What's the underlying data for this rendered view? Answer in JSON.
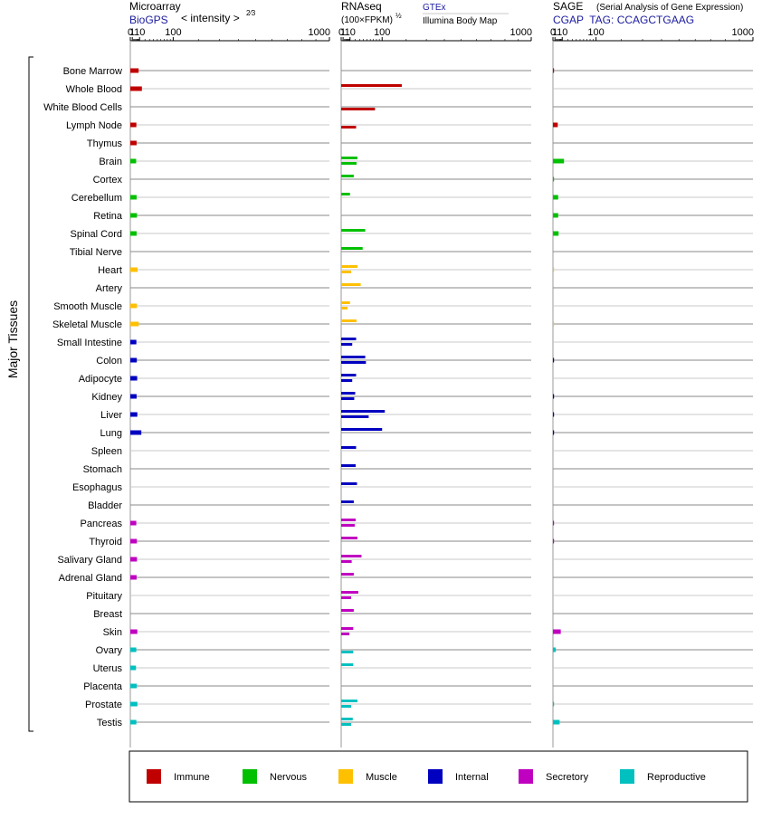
{
  "chart_data": [
    {
      "type": "bar",
      "panel": "microarray",
      "title": "Microarray",
      "source": "BioGPS",
      "scale_label": "< intensity >",
      "scale_exponent": "2⁄3",
      "axis_ticks": [
        "0",
        "1",
        "10",
        "100",
        "1000"
      ],
      "xlim": [
        0,
        1000
      ],
      "series": [
        {
          "name": "BioGPS",
          "values": [
            8.5,
            14,
            0,
            5.3,
            5.6,
            5,
            0,
            5.6,
            6.1,
            5.6,
            0,
            6.9,
            0,
            6.1,
            8.7,
            5.3,
            5.9,
            6.4,
            5.6,
            6.6,
            13,
            0,
            0,
            0,
            0,
            5.2,
            6.0,
            6.1,
            5.6,
            0,
            0,
            6.6,
            5.2,
            4.8,
            5.9,
            6.7,
            5.3
          ]
        }
      ]
    },
    {
      "type": "bar",
      "panel": "rnaseq",
      "title": "RNAseq",
      "unit_label": "(100×FPKM)",
      "unit_exponent": "½",
      "axis_ticks": [
        "0",
        "1",
        "10",
        "100",
        "1000"
      ],
      "xlim": [
        0,
        1000
      ],
      "series": [
        {
          "name": "GTEx",
          "values": [
            0,
            180,
            0,
            0,
            0,
            25,
            17,
            10,
            0,
            45,
            38,
            25,
            33,
            10,
            23,
            22,
            45,
            22,
            20,
            110,
            100,
            22,
            21,
            24,
            17,
            21,
            25,
            35,
            17,
            27,
            17,
            16,
            0,
            16,
            0,
            25,
            15
          ]
        },
        {
          "name": "Illumina Body Map",
          "values": [
            0,
            0,
            75,
            22,
            0,
            23,
            0,
            0,
            0,
            0,
            0,
            12,
            0,
            6,
            0,
            14,
            47,
            14,
            18,
            55,
            0,
            0,
            0,
            0,
            0,
            19,
            0,
            13,
            0,
            12,
            0,
            9,
            16,
            0,
            0,
            12,
            12
          ]
        }
      ]
    },
    {
      "type": "bar",
      "panel": "sage",
      "title": "SAGE",
      "subtitle": "(Serial Analysis of Gene Expression)",
      "tag_label": "CGAP  TAG: CCAGCTGAAG",
      "axis_ticks": [
        "0",
        "1",
        "10",
        "100",
        "1000"
      ],
      "xlim": [
        0,
        1000
      ],
      "series": [
        {
          "name": "CGAP",
          "values": [
            0.15,
            0,
            0,
            3.7,
            0,
            13,
            0.05,
            4.2,
            4.2,
            4.7,
            0,
            0.05,
            0,
            0,
            0.05,
            0,
            0.12,
            0,
            0.12,
            0.12,
            0.12,
            0,
            0,
            0,
            0,
            0.12,
            0.12,
            0,
            0,
            0,
            0,
            7.7,
            1.7,
            0,
            0,
            0.08,
            6.1
          ]
        }
      ]
    }
  ],
  "tissues": [
    {
      "name": "Bone Marrow",
      "group": 0
    },
    {
      "name": "Whole Blood",
      "group": 0
    },
    {
      "name": "White Blood Cells",
      "group": 0
    },
    {
      "name": "Lymph Node",
      "group": 0
    },
    {
      "name": "Thymus",
      "group": 0
    },
    {
      "name": "Brain",
      "group": 1
    },
    {
      "name": "Cortex",
      "group": 1
    },
    {
      "name": "Cerebellum",
      "group": 1
    },
    {
      "name": "Retina",
      "group": 1
    },
    {
      "name": "Spinal Cord",
      "group": 1
    },
    {
      "name": "Tibial Nerve",
      "group": 1
    },
    {
      "name": "Heart",
      "group": 2
    },
    {
      "name": "Artery",
      "group": 2
    },
    {
      "name": "Smooth Muscle",
      "group": 2
    },
    {
      "name": "Skeletal Muscle",
      "group": 2
    },
    {
      "name": "Small Intestine",
      "group": 3
    },
    {
      "name": "Colon",
      "group": 3
    },
    {
      "name": "Adipocyte",
      "group": 3
    },
    {
      "name": "Kidney",
      "group": 3
    },
    {
      "name": "Liver",
      "group": 3
    },
    {
      "name": "Lung",
      "group": 3
    },
    {
      "name": "Spleen",
      "group": 3
    },
    {
      "name": "Stomach",
      "group": 3
    },
    {
      "name": "Esophagus",
      "group": 3
    },
    {
      "name": "Bladder",
      "group": 3
    },
    {
      "name": "Pancreas",
      "group": 4
    },
    {
      "name": "Thyroid",
      "group": 4
    },
    {
      "name": "Salivary Gland",
      "group": 4
    },
    {
      "name": "Adrenal Gland",
      "group": 4
    },
    {
      "name": "Pituitary",
      "group": 4
    },
    {
      "name": "Breast",
      "group": 4
    },
    {
      "name": "Skin",
      "group": 4
    },
    {
      "name": "Ovary",
      "group": 5
    },
    {
      "name": "Uterus",
      "group": 5
    },
    {
      "name": "Placenta",
      "group": 5
    },
    {
      "name": "Prostate",
      "group": 5
    },
    {
      "name": "Testis",
      "group": 5
    }
  ],
  "axis_label": "Major Tissues",
  "legend": [
    {
      "label": "Immune",
      "color": "#c00000"
    },
    {
      "label": "Nervous",
      "color": "#00c000"
    },
    {
      "label": "Muscle",
      "color": "#ffc000"
    },
    {
      "label": "Internal",
      "color": "#0000c0"
    },
    {
      "label": "Secretory",
      "color": "#c000c0"
    },
    {
      "label": "Reproductive",
      "color": "#00c0c0"
    }
  ],
  "colors": {
    "source_text": "#1a1aa0",
    "row_line_dark": "#8a8a8a",
    "row_line_light": "#c8c8c8"
  }
}
